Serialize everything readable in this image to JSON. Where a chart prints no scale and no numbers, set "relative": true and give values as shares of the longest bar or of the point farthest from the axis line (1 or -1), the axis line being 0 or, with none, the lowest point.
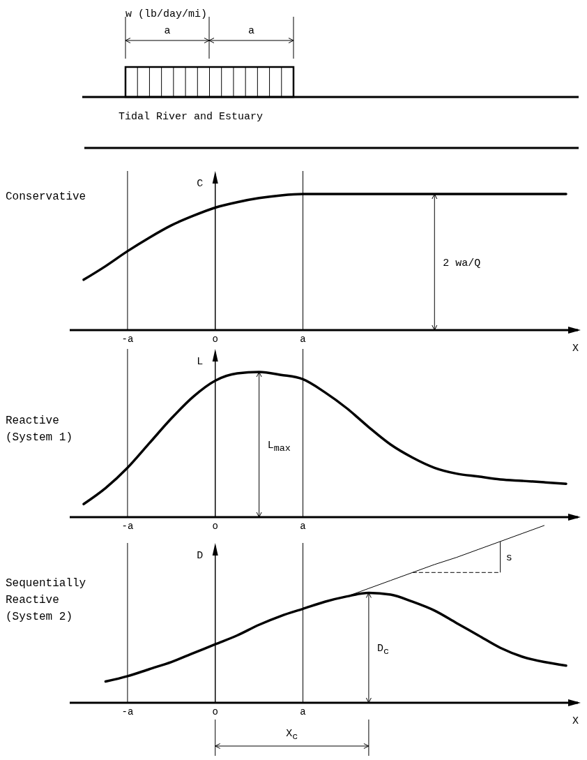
{
  "chart_data": [
    {
      "type": "other",
      "annotations": [
        "w (lb/day/mi)",
        "a",
        "a",
        "Tidal River and Estuary"
      ]
    },
    {
      "type": "line",
      "title": "Conservative",
      "ylabel": "C",
      "xlabel": "X",
      "relative": true,
      "grid": "x",
      "categories": [
        null,
        null,
        "-a",
        null,
        null,
        null,
        "o",
        null,
        null,
        null,
        "a",
        null,
        null,
        null,
        null,
        null,
        null,
        null,
        null,
        null,
        null,
        null,
        null
      ],
      "series": [
        {
          "color": "#000000",
          "values": [
            0.37,
            0.47,
            0.58,
            0.68,
            0.77,
            0.84,
            0.9,
            0.94,
            0.97,
            0.99,
            1.0,
            1.0,
            1.0,
            1.0,
            1.0,
            1.0,
            1.0,
            1.0,
            1.0,
            1.0,
            1.0,
            1.0,
            1.0
          ]
        }
      ],
      "annotations": [
        "2 wa/Q"
      ]
    },
    {
      "type": "line",
      "title": "Reactive (System 1)",
      "ylabel": "L",
      "relative": true,
      "grid": "x",
      "categories": [
        null,
        null,
        "-a",
        null,
        null,
        null,
        "o",
        null,
        null,
        null,
        "a",
        null,
        null,
        null,
        null,
        null,
        null,
        null,
        null,
        null,
        null,
        null,
        null
      ],
      "series": [
        {
          "color": "#000000",
          "values": [
            0.09,
            0.2,
            0.34,
            0.51,
            0.68,
            0.83,
            0.94,
            0.99,
            1.0,
            0.98,
            0.95,
            0.86,
            0.75,
            0.62,
            0.5,
            0.41,
            0.34,
            0.3,
            0.28,
            0.26,
            0.25,
            0.24,
            0.23
          ]
        }
      ],
      "annotations": [
        "L$_{max}$"
      ]
    },
    {
      "type": "line",
      "title": "Sequentially Reactive (System 2)",
      "ylabel": "D",
      "xlabel": "X",
      "relative": true,
      "grid": "x",
      "categories": [
        null,
        null,
        "-a",
        null,
        null,
        null,
        "o",
        null,
        null,
        null,
        "a",
        null,
        null,
        null,
        null,
        null,
        null,
        null,
        null,
        null,
        null,
        null,
        null
      ],
      "series": [
        {
          "color": "#000000",
          "values": [
            null,
            0.12,
            0.15,
            0.19,
            0.23,
            0.28,
            0.33,
            0.38,
            0.44,
            0.49,
            0.53,
            0.57,
            0.6,
            0.62,
            0.61,
            0.57,
            0.52,
            0.45,
            0.38,
            0.31,
            0.26,
            0.23,
            0.21
          ]
        },
        {
          "color": "#000000",
          "values": [
            null,
            null,
            null,
            null,
            null,
            null,
            null,
            null,
            null,
            null,
            null,
            null,
            0.6,
            0.645,
            0.69,
            0.735,
            0.78,
            0.82,
            0.865,
            0.91,
            0.955,
            1.0,
            null
          ]
        }
      ],
      "annotations": [
        "D$_{c}$",
        "X$_{c}$",
        "s"
      ]
    }
  ]
}
